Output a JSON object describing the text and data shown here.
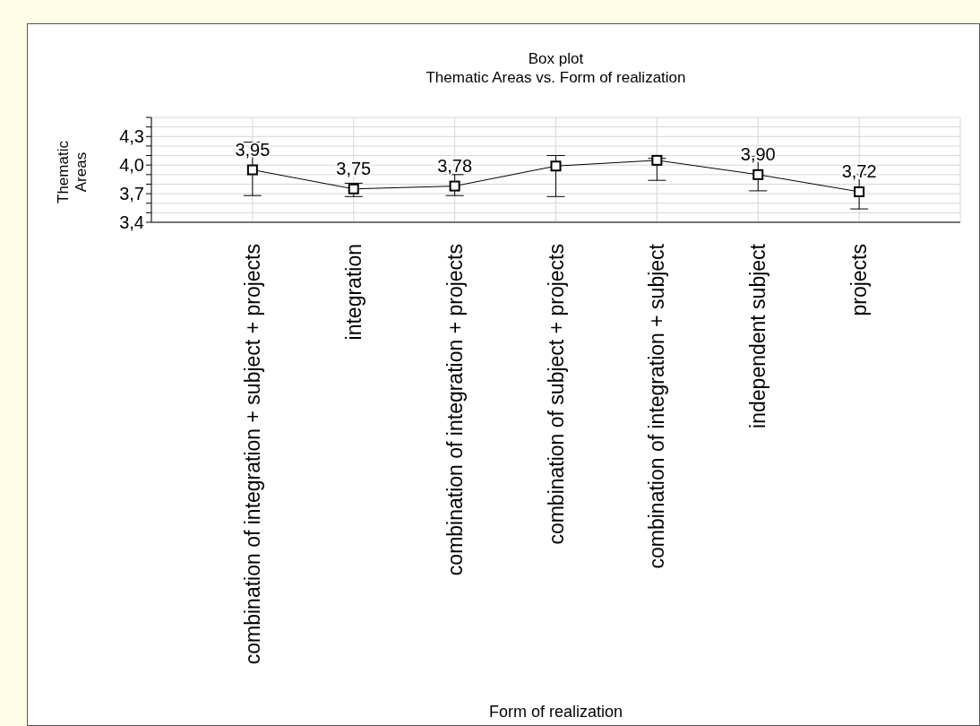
{
  "chart_data": {
    "type": "line",
    "title": "Box plot",
    "subtitle": "Thematic Areas vs. Form of realization",
    "xlabel": "Form of realization",
    "ylabel": "Thematic Areas",
    "categories": [
      "combination of integration + subject + projects",
      "integration",
      "combination of integration + projects",
      "combination of subject + projects",
      "combination of integration + subject",
      "independent subject",
      "projects"
    ],
    "series": [
      {
        "color": "#000000",
        "values": [
          3.95,
          3.75,
          3.78,
          3.99,
          4.05,
          3.9,
          3.72
        ],
        "errors": [
          [
            3.68,
            4.24
          ],
          [
            3.67,
            3.81
          ],
          [
            3.68,
            3.9
          ],
          [
            3.67,
            4.1
          ],
          [
            3.84,
            4.07
          ],
          [
            3.73,
            4.09
          ],
          [
            3.54,
            3.9
          ]
        ],
        "value_labels": [
          "3,95",
          "3,75",
          "3,78",
          null,
          null,
          "3,90",
          "3,72"
        ]
      }
    ],
    "ylim": [
      3.4,
      4.5
    ],
    "yticks": [
      {
        "value": 3.4,
        "label": "3,4"
      },
      {
        "value": 3.5,
        "label": null
      },
      {
        "value": 3.6,
        "label": null
      },
      {
        "value": 3.7,
        "label": "3,7"
      },
      {
        "value": 3.8,
        "label": null
      },
      {
        "value": 3.9,
        "label": null
      },
      {
        "value": 4.0,
        "label": "4,0"
      },
      {
        "value": 4.1,
        "label": null
      },
      {
        "value": 4.2,
        "label": null
      },
      {
        "value": 4.3,
        "label": "4,3"
      },
      {
        "value": 4.4,
        "label": null
      },
      {
        "value": 4.5,
        "label": null
      }
    ],
    "grid": true,
    "marker": "square",
    "line_style": "solid"
  }
}
